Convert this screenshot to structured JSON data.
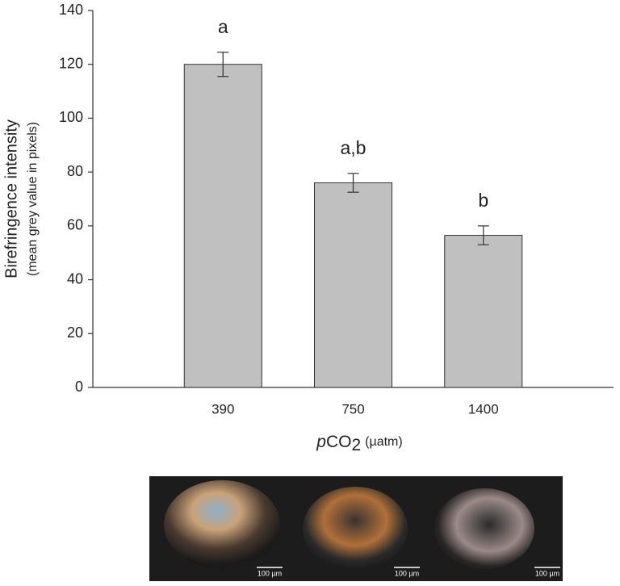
{
  "chart_data": {
    "type": "bar",
    "categories": [
      "390",
      "750",
      "1400"
    ],
    "values": [
      120,
      76,
      56.5
    ],
    "errors": [
      4.5,
      3.5,
      3.5
    ],
    "annotations": [
      "a",
      "a,b",
      "b"
    ],
    "color": "#c0c0c0",
    "ylim": [
      0,
      140
    ],
    "yticks": [
      0,
      20,
      40,
      60,
      80,
      100,
      120,
      140
    ],
    "y_label": "Birefringence intensity",
    "y_label_sub": "(mean grey value in pixels)",
    "x_label_parts": [
      "p",
      "CO",
      "2",
      "(µatm)"
    ]
  },
  "micrographs": {
    "scale_bar_labels": [
      "100 µm",
      "100 µm",
      "100 µm"
    ]
  }
}
